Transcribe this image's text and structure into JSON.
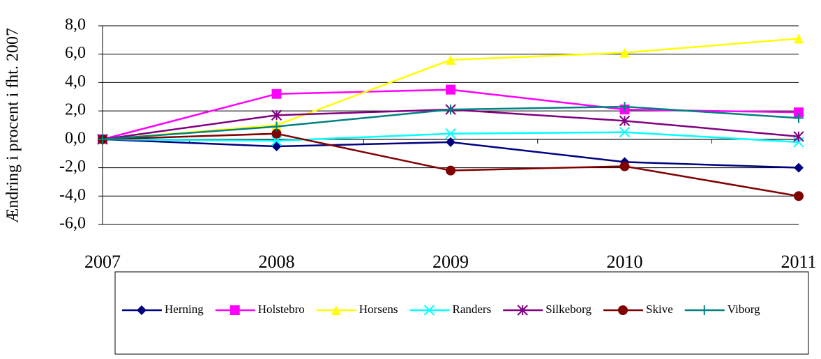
{
  "chart_data": {
    "type": "line",
    "y_label": "Ændring i procent i fht. 2007",
    "x": [
      2007,
      2008,
      2009,
      2010,
      2011
    ],
    "xlim": [
      2007,
      2011
    ],
    "xticks": [
      2007,
      2008,
      2009,
      2010,
      2011
    ],
    "ylim": [
      -6,
      8
    ],
    "yticks": [
      {
        "value": -6,
        "label": "-6,0"
      },
      {
        "value": -4,
        "label": "-4,0"
      },
      {
        "value": -2,
        "label": "-2,0"
      },
      {
        "value": 0,
        "label": "0,0"
      },
      {
        "value": 2,
        "label": "2,0"
      },
      {
        "value": 4,
        "label": "4,0"
      },
      {
        "value": 6,
        "label": "6,0"
      },
      {
        "value": 8,
        "label": "8,0"
      }
    ],
    "grid": true,
    "legend": "bottom",
    "series": [
      {
        "name": "Herning",
        "color": "#000080",
        "marker": "diamond",
        "values": [
          0,
          -0.5,
          -0.2,
          -1.6,
          -2.0
        ]
      },
      {
        "name": "Holstebro",
        "color": "#ff00ff",
        "marker": "square",
        "values": [
          0,
          3.2,
          3.5,
          2.1,
          1.9
        ]
      },
      {
        "name": "Horsens",
        "color": "#ffff00",
        "marker": "triangle",
        "values": [
          0,
          1.0,
          5.6,
          6.1,
          7.1
        ]
      },
      {
        "name": "Randers",
        "color": "#00ffff",
        "marker": "x",
        "values": [
          0,
          -0.1,
          0.4,
          0.5,
          -0.2
        ]
      },
      {
        "name": "Silkeborg",
        "color": "#800080",
        "marker": "star",
        "values": [
          0,
          1.7,
          2.1,
          1.3,
          0.2
        ]
      },
      {
        "name": "Skive",
        "color": "#800000",
        "marker": "circle",
        "values": [
          0,
          0.4,
          -2.2,
          -1.9,
          -4.0
        ]
      },
      {
        "name": "Viborg",
        "color": "#008080",
        "marker": "plus",
        "values": [
          0,
          0.9,
          2.1,
          2.3,
          1.5
        ]
      }
    ]
  }
}
